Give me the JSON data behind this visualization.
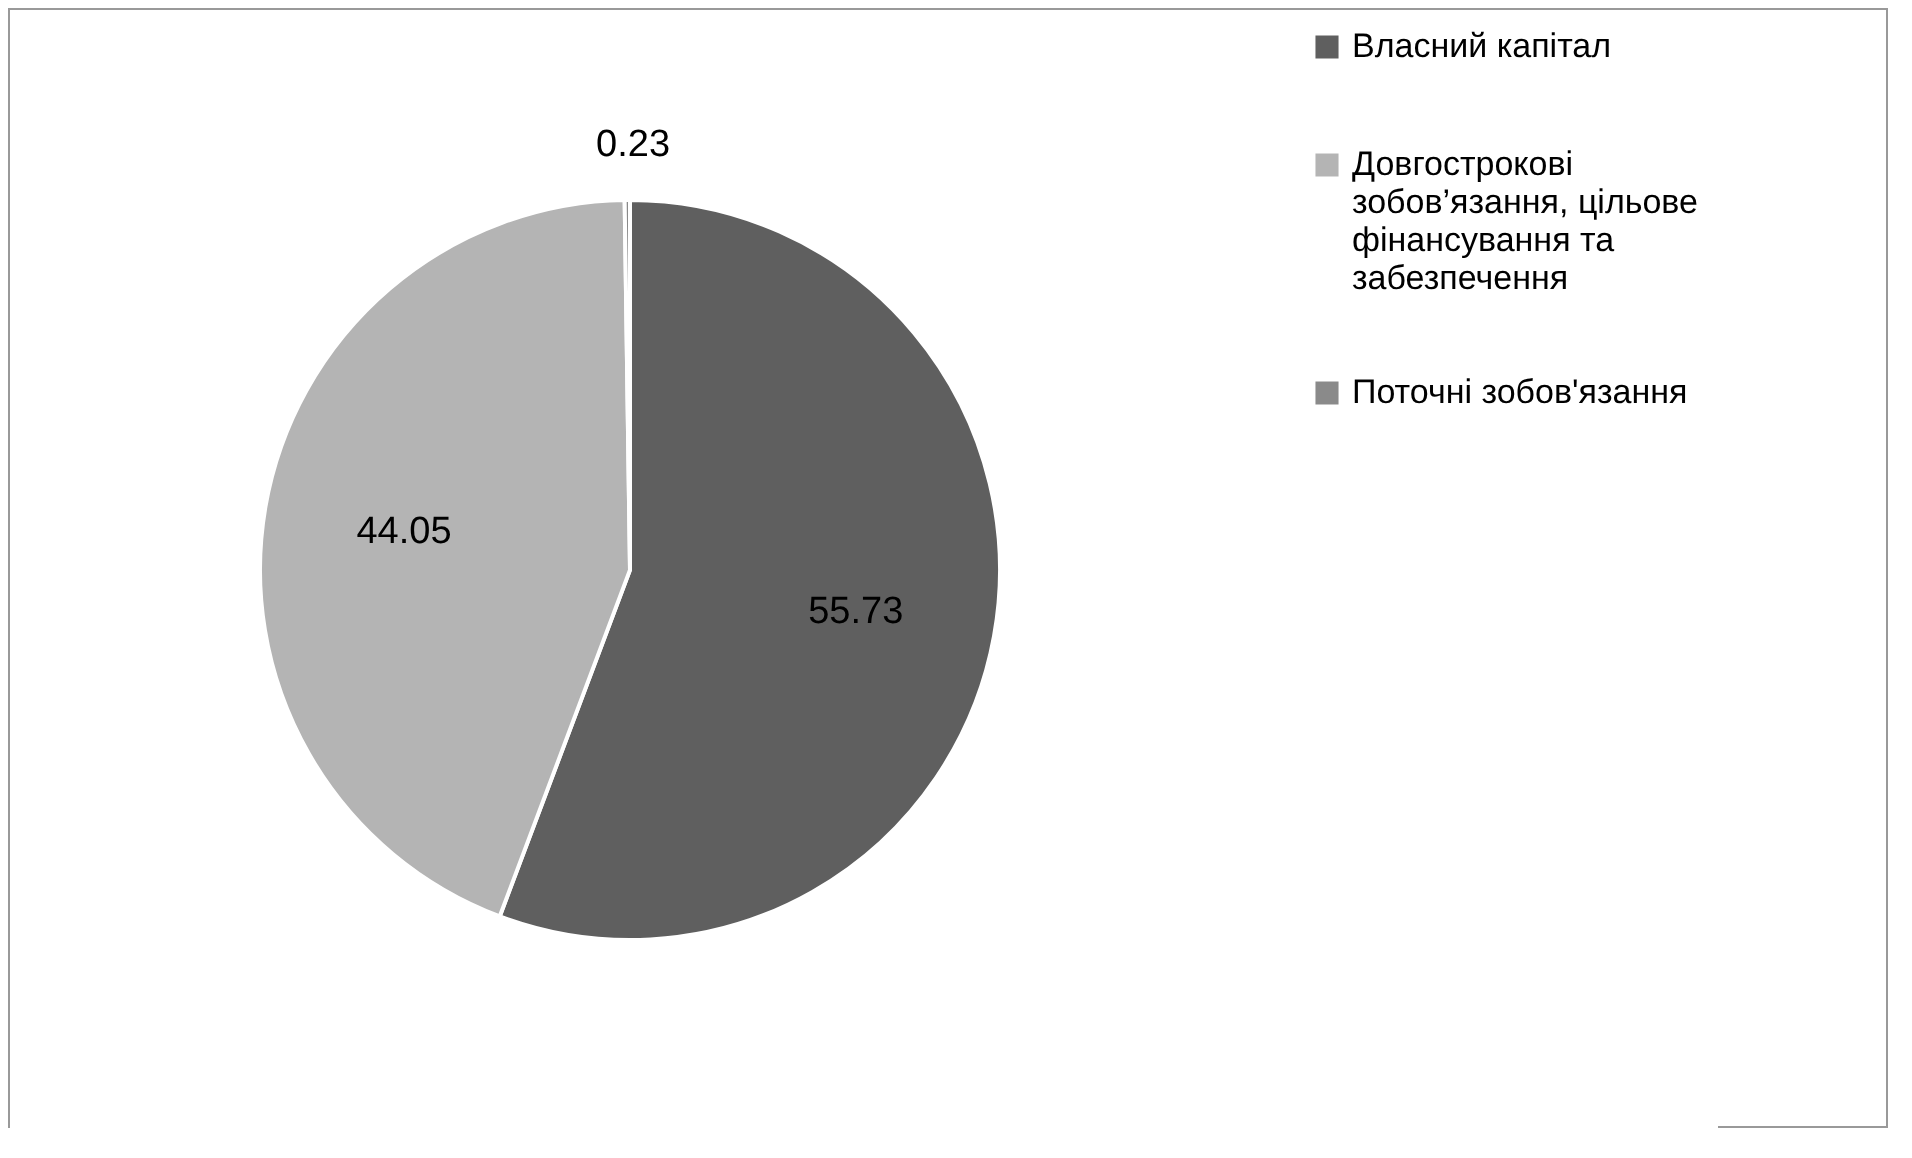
{
  "chart_data": {
    "type": "pie",
    "categories": [
      "Власний капітал",
      "Довгострокові зобов’язання, цільове фінансування та забезпечення",
      "Поточні зобов'язання"
    ],
    "values": [
      55.73,
      44.05,
      0.23
    ],
    "colors": [
      "#5f5f5f",
      "#b4b4b4",
      "#8a8a8a"
    ],
    "data_labels": true,
    "legend": "right"
  }
}
